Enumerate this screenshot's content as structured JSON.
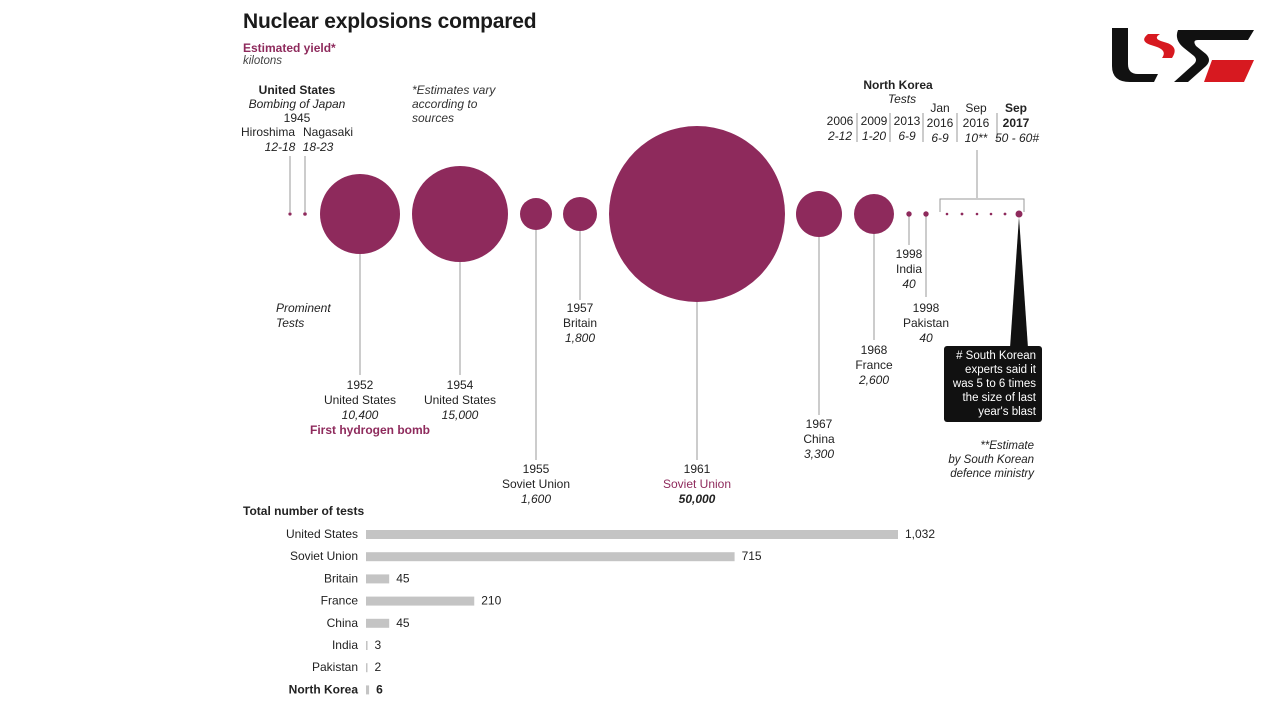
{
  "header": {
    "title": "Nuclear explosions compared",
    "subtitle": "Estimated yield*",
    "unit": "kilotons",
    "note": "*Estimates vary according to sources"
  },
  "japan": {
    "country": "United States",
    "event": "Bombing of Japan",
    "year": "1945",
    "hiroshima": {
      "name": "Hiroshima",
      "yield": "12-18"
    },
    "nagasaki": {
      "name": "Nagasaki",
      "yield": "18-23"
    }
  },
  "prominent_label": "Prominent Tests",
  "prominent_label_1": "Prominent",
  "prominent_label_2": "Tests",
  "tests": [
    {
      "year": "1952",
      "country": "United States",
      "yield": "10,400",
      "extra": "First hydrogen bomb"
    },
    {
      "year": "1954",
      "country": "United States",
      "yield": "15,000"
    },
    {
      "year": "1955",
      "country": "Soviet Union",
      "yield": "1,600"
    },
    {
      "year": "1957",
      "country": "Britain",
      "yield": "1,800"
    },
    {
      "year": "1961",
      "country": "Soviet Union",
      "yield": "50,000"
    },
    {
      "year": "1967",
      "country": "China",
      "yield": "3,300"
    },
    {
      "year": "1968",
      "country": "France",
      "yield": "2,600"
    },
    {
      "year": "1998",
      "country": "India",
      "yield": "40"
    },
    {
      "year": "1998",
      "country": "Pakistan",
      "yield": "40"
    }
  ],
  "north_korea": {
    "title": "North Korea",
    "sub": "Tests",
    "tests": [
      {
        "date": "2006",
        "yield": "2-12"
      },
      {
        "date": "2009",
        "yield": "1-20"
      },
      {
        "date": "2013",
        "yield": "6-9"
      },
      {
        "date_1": "Jan",
        "date_2": "2016",
        "yield": "6-9"
      },
      {
        "date_1": "Sep",
        "date_2": "2016",
        "yield": "10**"
      },
      {
        "date_1": "Sep",
        "date_2": "2017",
        "yield": "50 - 60#"
      }
    ]
  },
  "callout": "# South Korean experts said it was 5 to 6 times the size of last year's blast",
  "callout_lines": [
    "# South Korean",
    "experts said it",
    "was 5 to 6 times",
    "the size of last",
    "year's blast"
  ],
  "footnote_lines": [
    "**Estimate",
    "by South Korean",
    "defence ministry"
  ],
  "colors": {
    "accent": "#8e2a5c",
    "bar": "#c4c4c4"
  },
  "chart_data": [
    {
      "type": "scatter",
      "title": "Nuclear explosions compared",
      "subtitle": "Estimated yield*",
      "ylabel": "kilotons",
      "encoding": "bubble area proportional to yield",
      "points": [
        {
          "label": "Hiroshima 1945",
          "yield": 15
        },
        {
          "label": "Nagasaki 1945",
          "yield": 20
        },
        {
          "label": "1952 United States",
          "yield": 10400
        },
        {
          "label": "1954 United States",
          "yield": 15000
        },
        {
          "label": "1955 Soviet Union",
          "yield": 1600
        },
        {
          "label": "1957 Britain",
          "yield": 1800
        },
        {
          "label": "1961 Soviet Union",
          "yield": 50000
        },
        {
          "label": "1967 China",
          "yield": 3300
        },
        {
          "label": "1968 France",
          "yield": 2600
        },
        {
          "label": "1998 India",
          "yield": 40
        },
        {
          "label": "1998 Pakistan",
          "yield": 40
        },
        {
          "label": "2006 North Korea",
          "yield": 7
        },
        {
          "label": "2009 North Korea",
          "yield": 10
        },
        {
          "label": "2013 North Korea",
          "yield": 7.5
        },
        {
          "label": "Jan 2016 North Korea",
          "yield": 7.5
        },
        {
          "label": "Sep 2016 North Korea",
          "yield": 10
        },
        {
          "label": "Sep 2017 North Korea",
          "yield": 55
        }
      ]
    },
    {
      "type": "bar",
      "orientation": "horizontal",
      "title": "Total number of tests",
      "categories": [
        "United States",
        "Soviet Union",
        "Britain",
        "France",
        "China",
        "India",
        "Pakistan",
        "North Korea"
      ],
      "values": [
        1032,
        715,
        45,
        210,
        45,
        3,
        2,
        6
      ],
      "value_labels": [
        "1,032",
        "715",
        "45",
        "210",
        "45",
        "3",
        "2",
        "6"
      ],
      "grid": false
    }
  ]
}
